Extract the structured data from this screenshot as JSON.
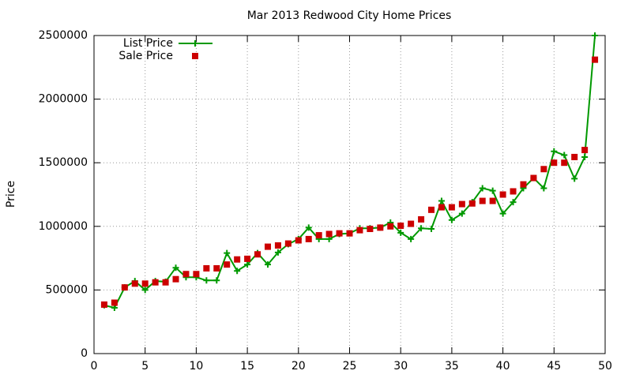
{
  "chart_data": {
    "type": "line",
    "title": "Mar 2013 Redwood City Home Prices",
    "y_label": "Price",
    "x": [
      1,
      2,
      3,
      4,
      5,
      6,
      7,
      8,
      9,
      10,
      11,
      12,
      13,
      14,
      15,
      16,
      17,
      18,
      19,
      20,
      21,
      22,
      23,
      24,
      25,
      26,
      27,
      28,
      29,
      30,
      31,
      32,
      33,
      34,
      35,
      36,
      37,
      38,
      39,
      40,
      41,
      42,
      43,
      44,
      45,
      46,
      47,
      48,
      49
    ],
    "series": [
      {
        "name": "List Price",
        "color": "#009900",
        "style": "linespoints",
        "values": [
          380000,
          360000,
          520000,
          570000,
          500000,
          570000,
          565000,
          675000,
          600000,
          600000,
          575000,
          575000,
          790000,
          650000,
          700000,
          790000,
          700000,
          795000,
          860000,
          900000,
          990000,
          900000,
          900000,
          940000,
          945000,
          985000,
          985000,
          990000,
          1030000,
          950000,
          900000,
          985000,
          980000,
          1200000,
          1050000,
          1100000,
          1190000,
          1300000,
          1280000,
          1100000,
          1190000,
          1300000,
          1380000,
          1300000,
          1590000,
          1560000,
          1375000,
          1545000,
          2500000
        ]
      },
      {
        "name": "Sale Price",
        "color": "#cc0000",
        "style": "points",
        "values": [
          385000,
          400000,
          520000,
          550000,
          550000,
          560000,
          560000,
          585000,
          625000,
          625000,
          670000,
          670000,
          700000,
          740000,
          745000,
          780000,
          840000,
          850000,
          865000,
          890000,
          900000,
          930000,
          940000,
          945000,
          945000,
          970000,
          980000,
          990000,
          1000000,
          1005000,
          1020000,
          1055000,
          1130000,
          1150000,
          1150000,
          1175000,
          1180000,
          1200000,
          1200000,
          1250000,
          1275000,
          1330000,
          1380000,
          1450000,
          1500000,
          1500000,
          1545000,
          1600000,
          2310000
        ]
      }
    ],
    "xlim": [
      0,
      50
    ],
    "xticks": [
      0,
      5,
      10,
      15,
      20,
      25,
      30,
      35,
      40,
      45,
      50
    ],
    "ylim": [
      0,
      2500000
    ],
    "yticks": [
      0,
      500000,
      1000000,
      1500000,
      2000000,
      2500000
    ],
    "grid": true,
    "legend": "top-left"
  }
}
